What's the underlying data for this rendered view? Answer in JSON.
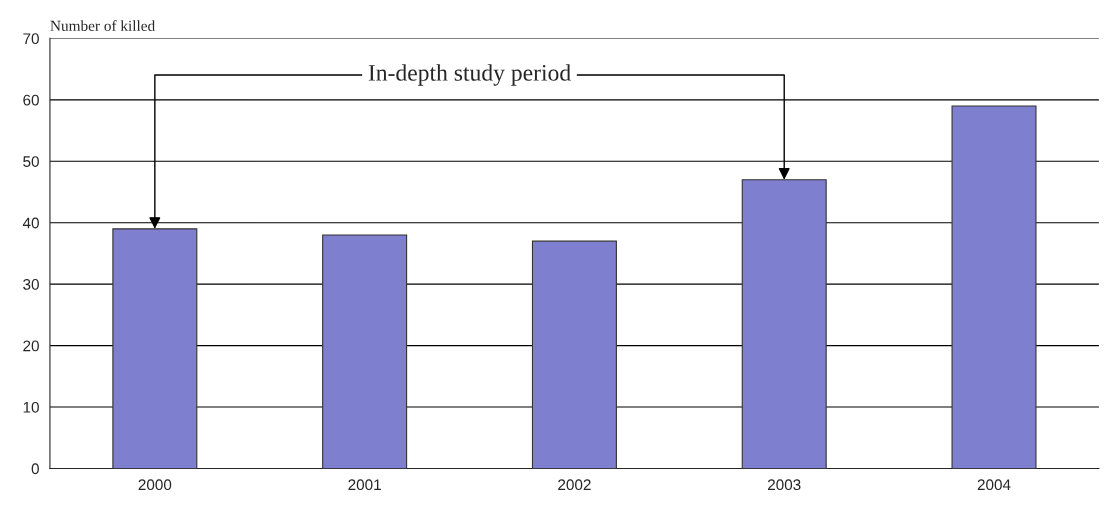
{
  "chart_data": {
    "type": "bar",
    "ylabel": "Number of killed",
    "categories": [
      "2000",
      "2001",
      "2002",
      "2003",
      "2004"
    ],
    "values": [
      39,
      38,
      37,
      47,
      59
    ],
    "color": "#7f7fd0",
    "ylim": [
      0,
      70
    ],
    "yticks": [
      0,
      10,
      20,
      30,
      40,
      50,
      60,
      70
    ],
    "grid": "y",
    "annotations": [
      {
        "text": "In-depth study period",
        "x": "2000",
        "y": 39
      }
    ]
  }
}
